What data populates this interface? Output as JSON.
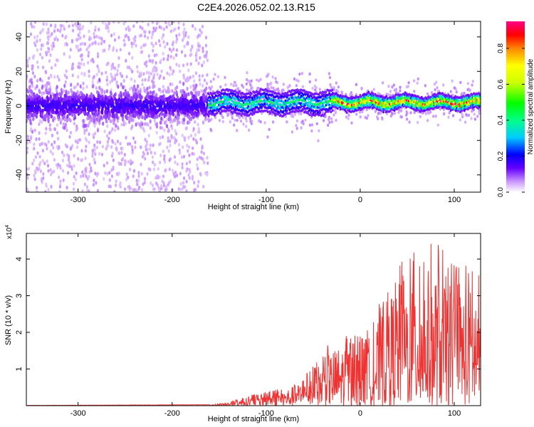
{
  "title": "C2E4.2026.052.02.13.R15",
  "chart_data": [
    {
      "type": "heatmap",
      "xlabel": "Height of straight line (km)",
      "ylabel": "Frequency (Hz)",
      "xlim": [
        -355,
        128
      ],
      "ylim": [
        -50,
        49
      ],
      "xticks": [
        -300,
        -200,
        -100,
        0,
        100
      ],
      "yticks": [
        -40,
        -20,
        0,
        20,
        40
      ],
      "colorbar": {
        "label": "Normalized spectral amplitude",
        "ticks": [
          0.0,
          0.2,
          0.4,
          0.6,
          0.8
        ],
        "range": [
          0,
          0.95
        ]
      },
      "regions": [
        {
          "x": [
            -355,
            -162
          ],
          "center_freq": 0,
          "spread_hz": 50,
          "peak_amplitude": 0.15
        },
        {
          "x": [
            -162,
            -30
          ],
          "center_freq": 2,
          "spread_hz": 8,
          "peak_amplitude": 0.5
        },
        {
          "x": [
            -30,
            128
          ],
          "center_freq": 2,
          "spread_hz": 5,
          "peak_amplitude": 0.95
        }
      ]
    },
    {
      "type": "line",
      "xlabel": "Height of straight line (km)",
      "ylabel": "SNR (10 * v/v)",
      "multiplier_base": "x10",
      "multiplier_exp": "4",
      "xlim": [
        -355,
        128
      ],
      "ylim": [
        0,
        4.7
      ],
      "xticks": [
        -300,
        -200,
        -100,
        0,
        100
      ],
      "yticks": [
        1,
        2,
        3,
        4
      ],
      "color": "#ee3333",
      "envelope": [
        {
          "x": -355,
          "y": 0.0
        },
        {
          "x": -160,
          "y": 0.02
        },
        {
          "x": -140,
          "y": 0.1
        },
        {
          "x": -115,
          "y": 0.3
        },
        {
          "x": -100,
          "y": 0.4
        },
        {
          "x": -80,
          "y": 0.5
        },
        {
          "x": -60,
          "y": 0.8
        },
        {
          "x": -45,
          "y": 1.3
        },
        {
          "x": -30,
          "y": 1.8
        },
        {
          "x": -15,
          "y": 2.0
        },
        {
          "x": 0,
          "y": 1.9
        },
        {
          "x": 15,
          "y": 2.4
        },
        {
          "x": 30,
          "y": 3.5
        },
        {
          "x": 45,
          "y": 4.1
        },
        {
          "x": 60,
          "y": 4.2
        },
        {
          "x": 80,
          "y": 4.5
        },
        {
          "x": 100,
          "y": 3.9
        },
        {
          "x": 128,
          "y": 3.8
        }
      ]
    }
  ]
}
